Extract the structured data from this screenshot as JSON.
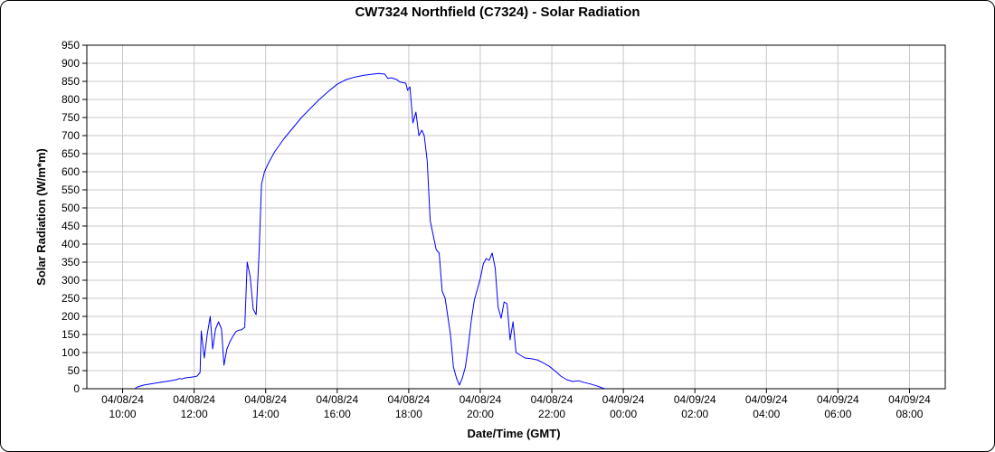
{
  "chart_data": {
    "type": "line",
    "title": "CW7324 Northfield (C7324) - Solar Radiation",
    "xlabel": "Date/Time (GMT)",
    "ylabel": "Solar Radiation (W/m*m)",
    "ylim": [
      0,
      950
    ],
    "xlim": [
      "2024-04-08 09:00",
      "2024-04-09 09:00"
    ],
    "grid": true,
    "y_ticks": [
      "0",
      "50",
      "100",
      "150",
      "200",
      "250",
      "300",
      "350",
      "400",
      "450",
      "500",
      "550",
      "600",
      "650",
      "700",
      "750",
      "800",
      "850",
      "900",
      "950"
    ],
    "x_ticks": [
      {
        "t": "2024-04-08 10:00",
        "date": "04/08/24",
        "time": "10:00"
      },
      {
        "t": "2024-04-08 12:00",
        "date": "04/08/24",
        "time": "12:00"
      },
      {
        "t": "2024-04-08 14:00",
        "date": "04/08/24",
        "time": "14:00"
      },
      {
        "t": "2024-04-08 16:00",
        "date": "04/08/24",
        "time": "16:00"
      },
      {
        "t": "2024-04-08 18:00",
        "date": "04/08/24",
        "time": "18:00"
      },
      {
        "t": "2024-04-08 20:00",
        "date": "04/08/24",
        "time": "20:00"
      },
      {
        "t": "2024-04-08 22:00",
        "date": "04/08/24",
        "time": "22:00"
      },
      {
        "t": "2024-04-09 00:00",
        "date": "04/09/24",
        "time": "00:00"
      },
      {
        "t": "2024-04-09 02:00",
        "date": "04/09/24",
        "time": "02:00"
      },
      {
        "t": "2024-04-09 04:00",
        "date": "04/09/24",
        "time": "04:00"
      },
      {
        "t": "2024-04-09 06:00",
        "date": "04/09/24",
        "time": "06:00"
      },
      {
        "t": "2024-04-09 08:00",
        "date": "04/09/24",
        "time": "08:00"
      }
    ],
    "series": [
      {
        "color": "#0000ff",
        "points": [
          [
            "2024-04-08 10:20",
            0
          ],
          [
            "2024-04-08 10:25",
            5
          ],
          [
            "2024-04-08 10:35",
            10
          ],
          [
            "2024-04-08 10:50",
            14
          ],
          [
            "2024-04-08 11:05",
            18
          ],
          [
            "2024-04-08 11:20",
            22
          ],
          [
            "2024-04-08 11:30",
            25
          ],
          [
            "2024-04-08 11:35",
            28
          ],
          [
            "2024-04-08 11:40",
            27
          ],
          [
            "2024-04-08 11:45",
            30
          ],
          [
            "2024-04-08 11:55",
            32
          ],
          [
            "2024-04-08 12:00",
            33
          ],
          [
            "2024-04-08 12:05",
            35
          ],
          [
            "2024-04-08 12:10",
            45
          ],
          [
            "2024-04-08 12:12",
            160
          ],
          [
            "2024-04-08 12:17",
            85
          ],
          [
            "2024-04-08 12:22",
            150
          ],
          [
            "2024-04-08 12:27",
            200
          ],
          [
            "2024-04-08 12:31",
            110
          ],
          [
            "2024-04-08 12:36",
            165
          ],
          [
            "2024-04-08 12:41",
            185
          ],
          [
            "2024-04-08 12:46",
            165
          ],
          [
            "2024-04-08 12:50",
            65
          ],
          [
            "2024-04-08 12:55",
            110
          ],
          [
            "2024-04-08 13:00",
            130
          ],
          [
            "2024-04-08 13:05",
            145
          ],
          [
            "2024-04-08 13:10",
            158
          ],
          [
            "2024-04-08 13:15",
            162
          ],
          [
            "2024-04-08 13:20",
            163
          ],
          [
            "2024-04-08 13:25",
            170
          ],
          [
            "2024-04-08 13:29",
            350
          ],
          [
            "2024-04-08 13:34",
            310
          ],
          [
            "2024-04-08 13:39",
            220
          ],
          [
            "2024-04-08 13:44",
            205
          ],
          [
            "2024-04-08 13:49",
            380
          ],
          [
            "2024-04-08 13:53",
            565
          ],
          [
            "2024-04-08 13:58",
            600
          ],
          [
            "2024-04-08 14:05",
            625
          ],
          [
            "2024-04-08 14:15",
            655
          ],
          [
            "2024-04-08 14:30",
            690
          ],
          [
            "2024-04-08 14:45",
            720
          ],
          [
            "2024-04-08 15:00",
            750
          ],
          [
            "2024-04-08 15:15",
            775
          ],
          [
            "2024-04-08 15:30",
            800
          ],
          [
            "2024-04-08 15:45",
            822
          ],
          [
            "2024-04-08 16:00",
            842
          ],
          [
            "2024-04-08 16:15",
            855
          ],
          [
            "2024-04-08 16:30",
            862
          ],
          [
            "2024-04-08 16:45",
            867
          ],
          [
            "2024-04-08 17:00",
            870
          ],
          [
            "2024-04-08 17:10",
            872
          ],
          [
            "2024-04-08 17:20",
            870
          ],
          [
            "2024-04-08 17:25",
            858
          ],
          [
            "2024-04-08 17:30",
            860
          ],
          [
            "2024-04-08 17:40",
            855
          ],
          [
            "2024-04-08 17:45",
            848
          ],
          [
            "2024-04-08 17:55",
            845
          ],
          [
            "2024-04-08 17:58",
            825
          ],
          [
            "2024-04-08 18:02",
            835
          ],
          [
            "2024-04-08 18:07",
            735
          ],
          [
            "2024-04-08 18:12",
            765
          ],
          [
            "2024-04-08 18:17",
            700
          ],
          [
            "2024-04-08 18:22",
            715
          ],
          [
            "2024-04-08 18:26",
            700
          ],
          [
            "2024-04-08 18:31",
            630
          ],
          [
            "2024-04-08 18:36",
            465
          ],
          [
            "2024-04-08 18:46",
            385
          ],
          [
            "2024-04-08 18:51",
            375
          ],
          [
            "2024-04-08 18:56",
            270
          ],
          [
            "2024-04-08 19:01",
            250
          ],
          [
            "2024-04-08 19:10",
            150
          ],
          [
            "2024-04-08 19:15",
            60
          ],
          [
            "2024-04-08 19:20",
            30
          ],
          [
            "2024-04-08 19:25",
            10
          ],
          [
            "2024-04-08 19:30",
            30
          ],
          [
            "2024-04-08 19:35",
            60
          ],
          [
            "2024-04-08 19:40",
            120
          ],
          [
            "2024-04-08 19:45",
            190
          ],
          [
            "2024-04-08 19:50",
            245
          ],
          [
            "2024-04-08 20:00",
            305
          ],
          [
            "2024-04-08 20:05",
            345
          ],
          [
            "2024-04-08 20:10",
            360
          ],
          [
            "2024-04-08 20:15",
            355
          ],
          [
            "2024-04-08 20:20",
            375
          ],
          [
            "2024-04-08 20:25",
            335
          ],
          [
            "2024-04-08 20:30",
            225
          ],
          [
            "2024-04-08 20:35",
            195
          ],
          [
            "2024-04-08 20:40",
            240
          ],
          [
            "2024-04-08 20:45",
            235
          ],
          [
            "2024-04-08 20:50",
            135
          ],
          [
            "2024-04-08 20:55",
            185
          ],
          [
            "2024-04-08 21:00",
            100
          ],
          [
            "2024-04-08 21:10",
            90
          ],
          [
            "2024-04-08 21:15",
            85
          ],
          [
            "2024-04-08 21:25",
            83
          ],
          [
            "2024-04-08 21:35",
            80
          ],
          [
            "2024-04-08 21:45",
            72
          ],
          [
            "2024-04-08 21:55",
            63
          ],
          [
            "2024-04-08 22:05",
            50
          ],
          [
            "2024-04-08 22:15",
            35
          ],
          [
            "2024-04-08 22:25",
            25
          ],
          [
            "2024-04-08 22:35",
            20
          ],
          [
            "2024-04-08 22:45",
            22
          ],
          [
            "2024-04-08 22:55",
            17
          ],
          [
            "2024-04-08 23:05",
            13
          ],
          [
            "2024-04-08 23:15",
            8
          ],
          [
            "2024-04-08 23:20",
            5
          ],
          [
            "2024-04-08 23:25",
            2
          ],
          [
            "2024-04-08 23:30",
            0
          ]
        ]
      }
    ]
  }
}
